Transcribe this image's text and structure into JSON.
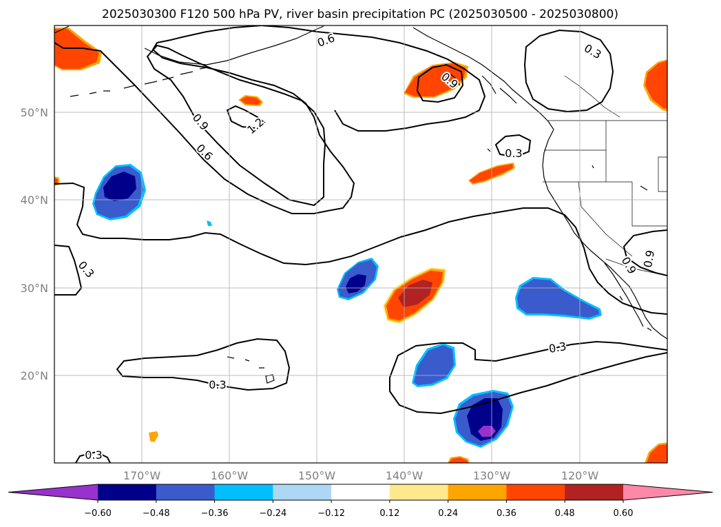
{
  "title": "2025030300 F120 500 hPa PV, river basin precipitation PC (2025030500 - 2025030800)",
  "colors": {
    "purple": "#9932cc",
    "navy": "#00008b",
    "royalblue": "#3a5bcc",
    "deepskyblue": "#00bfff",
    "lightblue": "#add8f5",
    "white": "#ffffff",
    "khaki": "#ffe98c",
    "orange": "#ffa500",
    "orangered": "#ff4500",
    "firebrick": "#b22222",
    "pink": "#ff88aa",
    "contour": "#000000",
    "coast": "#000000",
    "grid": "#b0b0b0",
    "ticklabel": "#808080"
  },
  "map": {
    "projection": "PlateCarree",
    "extent": {
      "lon_min": -180,
      "lon_max": -110,
      "lat_min": 10,
      "lat_max": 60
    },
    "lat_ticks": [
      "50°N",
      "40°N",
      "30°N",
      "20°N"
    ],
    "lon_ticks": [
      "170°W",
      "160°W",
      "150°W",
      "140°W",
      "130°W",
      "120°W"
    ],
    "gridlines": true,
    "features": [
      "coastlines",
      "country borders",
      "US state borders"
    ]
  },
  "pv_contours": {
    "field": "500 hPa PV",
    "levels": [
      0.3,
      0.6,
      0.9,
      1.2
    ],
    "labels": [
      "0.6",
      "0.3",
      "0.9",
      "1.2",
      "0.9",
      "0.6",
      "0.3",
      "0.3",
      "0.9",
      "0.9",
      "0.3",
      "0.3",
      "0.3"
    ]
  },
  "colorbar": {
    "extend": "both",
    "levels": [
      -0.72,
      -0.6,
      -0.48,
      -0.36,
      -0.24,
      -0.12,
      0.12,
      0.24,
      0.36,
      0.48,
      0.6,
      0.72
    ],
    "tick_labels": [
      "−0.60",
      "−0.48",
      "−0.36",
      "−0.24",
      "−0.12",
      "0.12",
      "0.24",
      "0.36",
      "0.48",
      "0.60"
    ],
    "segment_colors": [
      "#9932cc",
      "#00008b",
      "#3a5bcc",
      "#00bfff",
      "#add8f5",
      "#ffffff",
      "#ffe98c",
      "#ffa500",
      "#ff4500",
      "#b22222",
      "#ff88aa"
    ]
  }
}
